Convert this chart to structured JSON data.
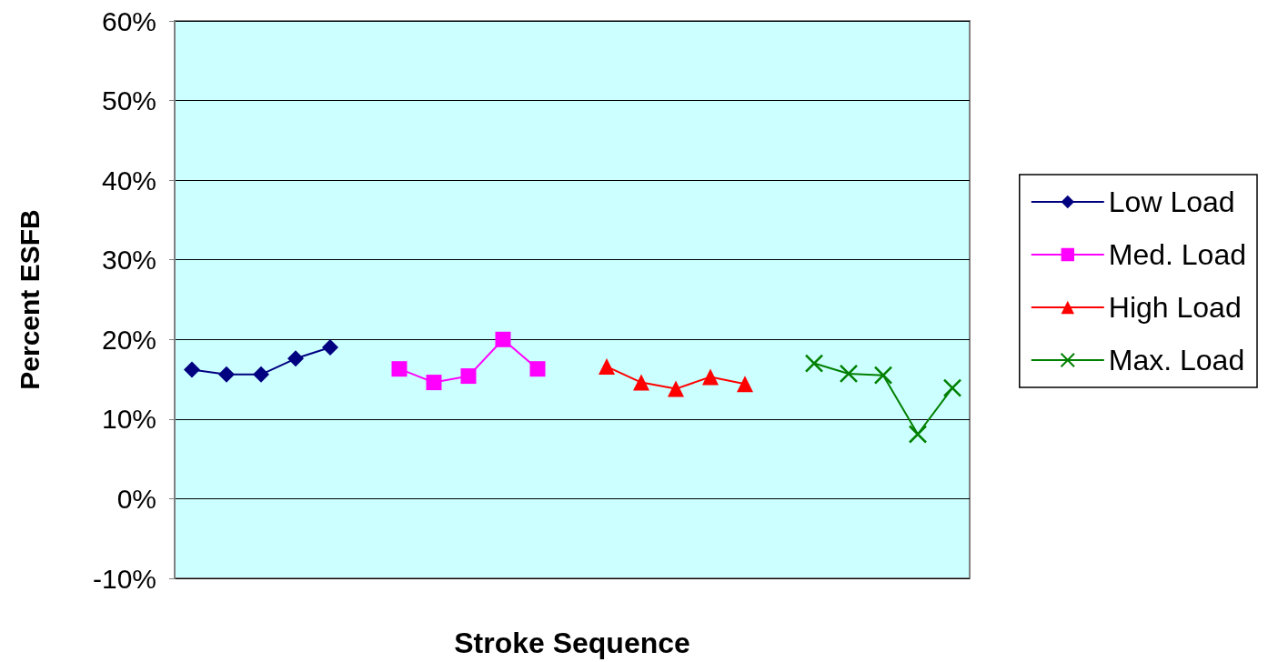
{
  "chart_data": {
    "type": "line",
    "xlabel": "Stroke Sequence",
    "ylabel": "Percent ESFB",
    "categories": [
      null,
      null,
      null,
      null,
      null,
      null,
      null,
      null,
      null,
      null,
      null,
      null,
      null,
      null,
      null,
      null,
      null,
      null,
      null,
      null,
      null,
      null,
      null
    ],
    "series": [
      {
        "name": "Low Load",
        "color": "#000080",
        "marker": "diamond",
        "values": [
          16.2,
          15.6,
          15.6,
          17.6,
          19.0,
          null,
          null,
          null,
          null,
          null,
          null,
          null,
          null,
          null,
          null,
          null,
          null,
          null,
          null,
          null,
          null,
          null,
          null
        ]
      },
      {
        "name": "Med. Load",
        "color": "#ff00ff",
        "marker": "square",
        "values": [
          null,
          null,
          null,
          null,
          null,
          null,
          16.3,
          14.6,
          15.4,
          20.0,
          16.3,
          null,
          null,
          null,
          null,
          null,
          null,
          null,
          null,
          null,
          null,
          null,
          null
        ]
      },
      {
        "name": "High Load",
        "color": "#ff0000",
        "marker": "triangle",
        "values": [
          null,
          null,
          null,
          null,
          null,
          null,
          null,
          null,
          null,
          null,
          null,
          null,
          16.6,
          14.6,
          13.8,
          15.3,
          14.4,
          null,
          null,
          null,
          null,
          null,
          null
        ]
      },
      {
        "name": "Max. Load",
        "color": "#008000",
        "marker": "cross",
        "values": [
          null,
          null,
          null,
          null,
          null,
          null,
          null,
          null,
          null,
          null,
          null,
          null,
          null,
          null,
          null,
          null,
          null,
          null,
          17.0,
          15.7,
          15.5,
          8.1,
          13.9
        ]
      }
    ],
    "ylim": [
      -10,
      60
    ],
    "yticks": [
      {
        "value": -10,
        "label": "-10%"
      },
      {
        "value": 0,
        "label": "0%"
      },
      {
        "value": 10,
        "label": "10%"
      },
      {
        "value": 20,
        "label": "20%"
      },
      {
        "value": 30,
        "label": "30%"
      },
      {
        "value": 40,
        "label": "40%"
      },
      {
        "value": 50,
        "label": "50%"
      },
      {
        "value": 60,
        "label": "60%"
      }
    ],
    "grid": "y",
    "legend": "right",
    "tick_labels": "y",
    "line_style": "solid"
  }
}
